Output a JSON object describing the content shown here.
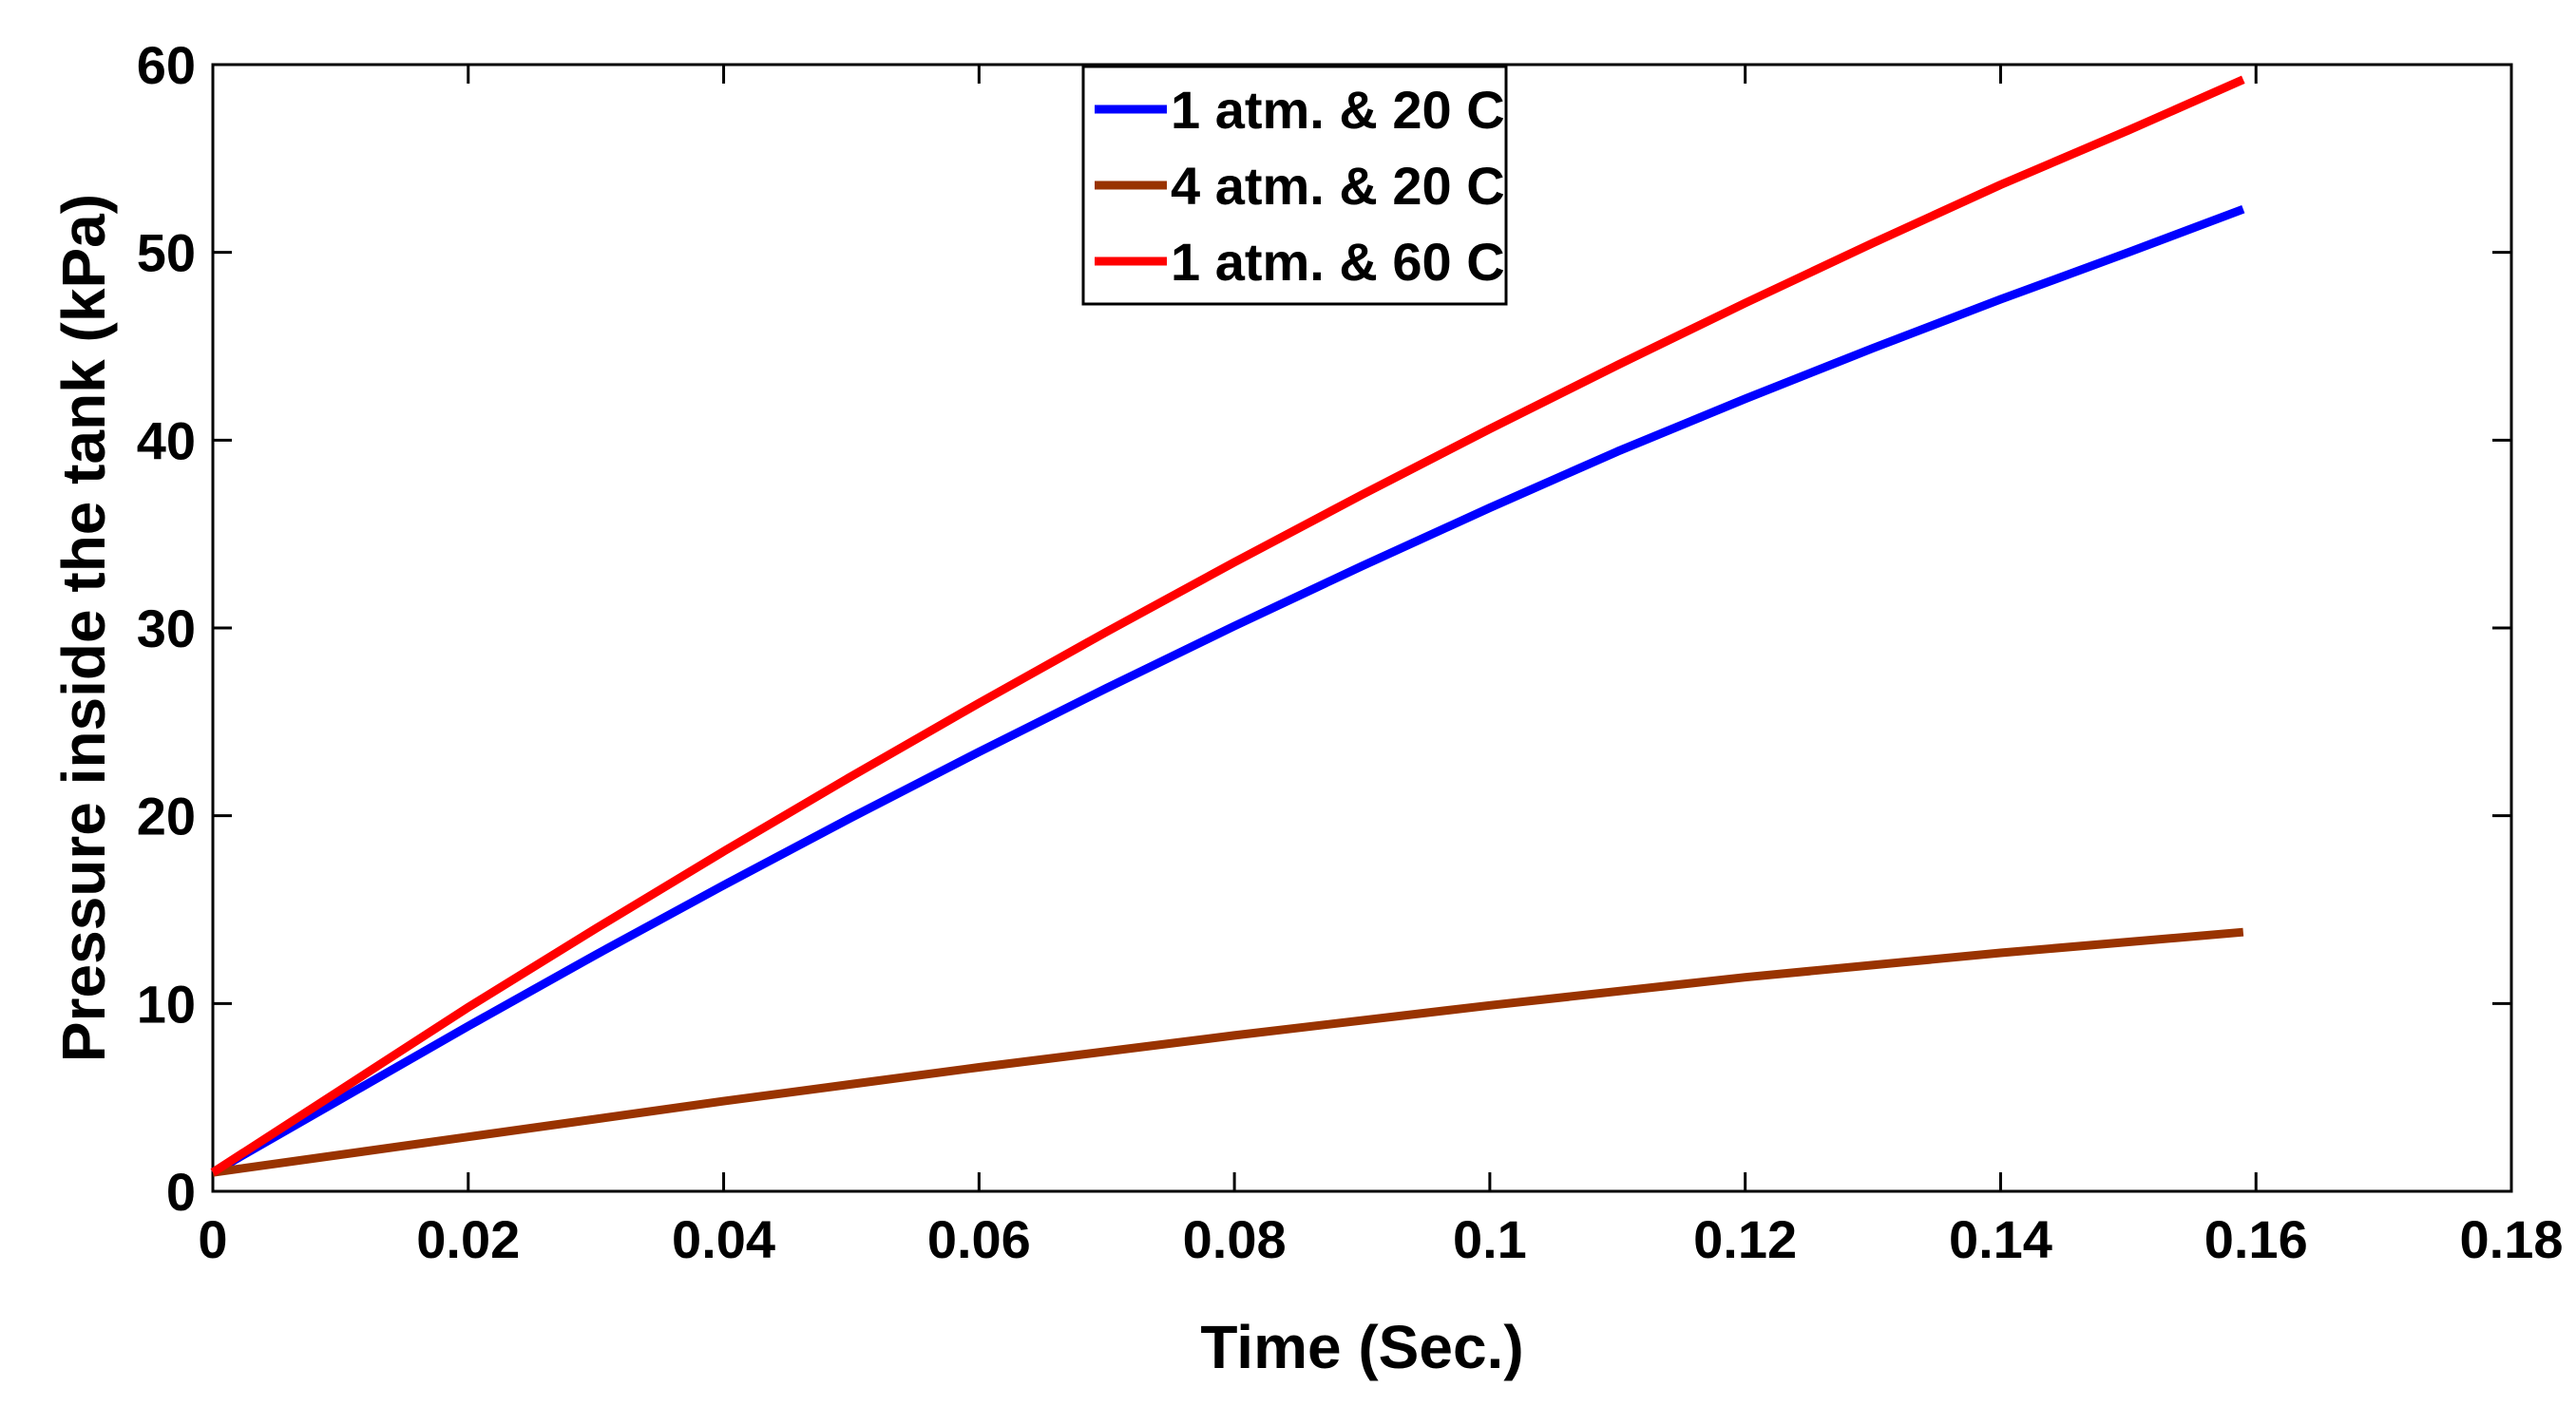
{
  "chart_data": {
    "type": "line",
    "title": "",
    "xlabel": "Time (Sec.)",
    "ylabel": "Pressure inside the tank (kPa)",
    "xlim": [
      0,
      0.18
    ],
    "ylim": [
      0,
      60
    ],
    "xticks": [
      0,
      0.02,
      0.04,
      0.06,
      0.08,
      0.1,
      0.12,
      0.14,
      0.16,
      0.18
    ],
    "xtick_labels": [
      "0",
      "0.02",
      "0.04",
      "0.06",
      "0.08",
      "0.1",
      "0.12",
      "0.14",
      "0.16",
      "0.18"
    ],
    "yticks": [
      0,
      10,
      20,
      30,
      40,
      50,
      60
    ],
    "ytick_labels": [
      "0",
      "10",
      "20",
      "30",
      "40",
      "50",
      "60"
    ],
    "grid": false,
    "legend": {
      "position": "top-center"
    },
    "series": [
      {
        "name": "1 atm. & 20 C",
        "color": "#0000ff",
        "x": [
          0,
          0.01,
          0.02,
          0.03,
          0.04,
          0.05,
          0.06,
          0.07,
          0.08,
          0.09,
          0.1,
          0.11,
          0.12,
          0.13,
          0.14,
          0.15,
          0.159
        ],
        "y": [
          1.0,
          4.9,
          8.8,
          12.6,
          16.3,
          19.9,
          23.4,
          26.8,
          30.1,
          33.3,
          36.4,
          39.4,
          42.2,
          44.9,
          47.5,
          50.0,
          52.3
        ]
      },
      {
        "name": "4 atm. & 20 C",
        "color": "#993300",
        "x": [
          0,
          0.02,
          0.04,
          0.06,
          0.08,
          0.1,
          0.12,
          0.14,
          0.159
        ],
        "y": [
          1.0,
          2.9,
          4.8,
          6.6,
          8.3,
          9.9,
          11.4,
          12.7,
          13.8
        ]
      },
      {
        "name": "1 atm. & 60 C",
        "color": "#ff0000",
        "x": [
          0,
          0.01,
          0.02,
          0.03,
          0.04,
          0.05,
          0.06,
          0.07,
          0.08,
          0.09,
          0.1,
          0.11,
          0.12,
          0.13,
          0.14,
          0.15,
          0.159
        ],
        "y": [
          1.0,
          5.4,
          9.8,
          14.0,
          18.1,
          22.1,
          26.0,
          29.8,
          33.5,
          37.1,
          40.6,
          44.0,
          47.3,
          50.5,
          53.6,
          56.5,
          59.2
        ]
      }
    ]
  }
}
